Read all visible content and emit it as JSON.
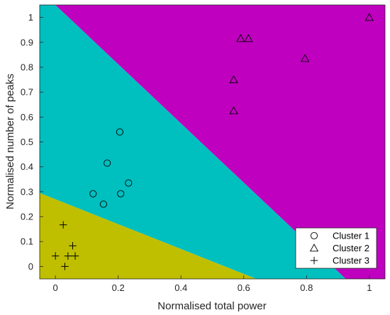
{
  "chart_data": {
    "type": "scatter",
    "title": "",
    "xlabel": "Normalised total power",
    "ylabel": "Normalised number of peaks",
    "xlim": [
      -0.05,
      1.05
    ],
    "ylim": [
      -0.05,
      1.05
    ],
    "xticks": [
      0,
      0.2,
      0.4,
      0.6,
      0.8,
      1
    ],
    "xtick_labels": [
      "0",
      "0.2",
      "0.4",
      "0.6",
      "0.8",
      "1"
    ],
    "yticks": [
      0,
      0.1,
      0.2,
      0.3,
      0.4,
      0.5,
      0.6,
      0.7,
      0.8,
      0.9,
      1
    ],
    "ytick_labels": [
      "0",
      "0.1",
      "0.2",
      "0.3",
      "0.4",
      "0.5",
      "0.6",
      "0.7",
      "0.8",
      "0.9",
      "1"
    ],
    "grid": false,
    "legend_position": "bottom-right",
    "regions": [
      {
        "name": "Cluster 3 region",
        "color": "#bfbf00",
        "polygon": [
          [
            -0.05,
            -0.05
          ],
          [
            -0.05,
            0.295
          ],
          [
            0.64,
            -0.05
          ]
        ]
      },
      {
        "name": "Cluster 1 region",
        "color": "#00bfbf",
        "polygon": [
          [
            -0.05,
            0.295
          ],
          [
            -0.05,
            1.05
          ],
          [
            0.0,
            1.05
          ],
          [
            0.925,
            -0.05
          ],
          [
            0.64,
            -0.05
          ]
        ]
      },
      {
        "name": "Cluster 2 region",
        "color": "#bf00bf",
        "polygon": [
          [
            0.0,
            1.05
          ],
          [
            1.05,
            1.05
          ],
          [
            1.05,
            -0.05
          ],
          [
            0.925,
            -0.05
          ]
        ]
      }
    ],
    "series": [
      {
        "name": "Cluster 1",
        "marker": "circle",
        "color": "#000000",
        "points": [
          [
            0.205,
            0.54
          ],
          [
            0.165,
            0.415
          ],
          [
            0.233,
            0.335
          ],
          [
            0.12,
            0.292
          ],
          [
            0.208,
            0.292
          ],
          [
            0.153,
            0.25
          ]
        ]
      },
      {
        "name": "Cluster 2",
        "marker": "triangle",
        "color": "#000000",
        "points": [
          [
            0.59,
            0.915
          ],
          [
            0.615,
            0.915
          ],
          [
            0.795,
            0.835
          ],
          [
            1.0,
            1.0
          ],
          [
            0.568,
            0.75
          ],
          [
            0.568,
            0.625
          ]
        ]
      },
      {
        "name": "Cluster 3",
        "marker": "plus",
        "color": "#000000",
        "points": [
          [
            0.025,
            0.167
          ],
          [
            0.055,
            0.083
          ],
          [
            0.0,
            0.042
          ],
          [
            0.04,
            0.042
          ],
          [
            0.063,
            0.042
          ],
          [
            0.03,
            0.0
          ]
        ]
      }
    ]
  }
}
